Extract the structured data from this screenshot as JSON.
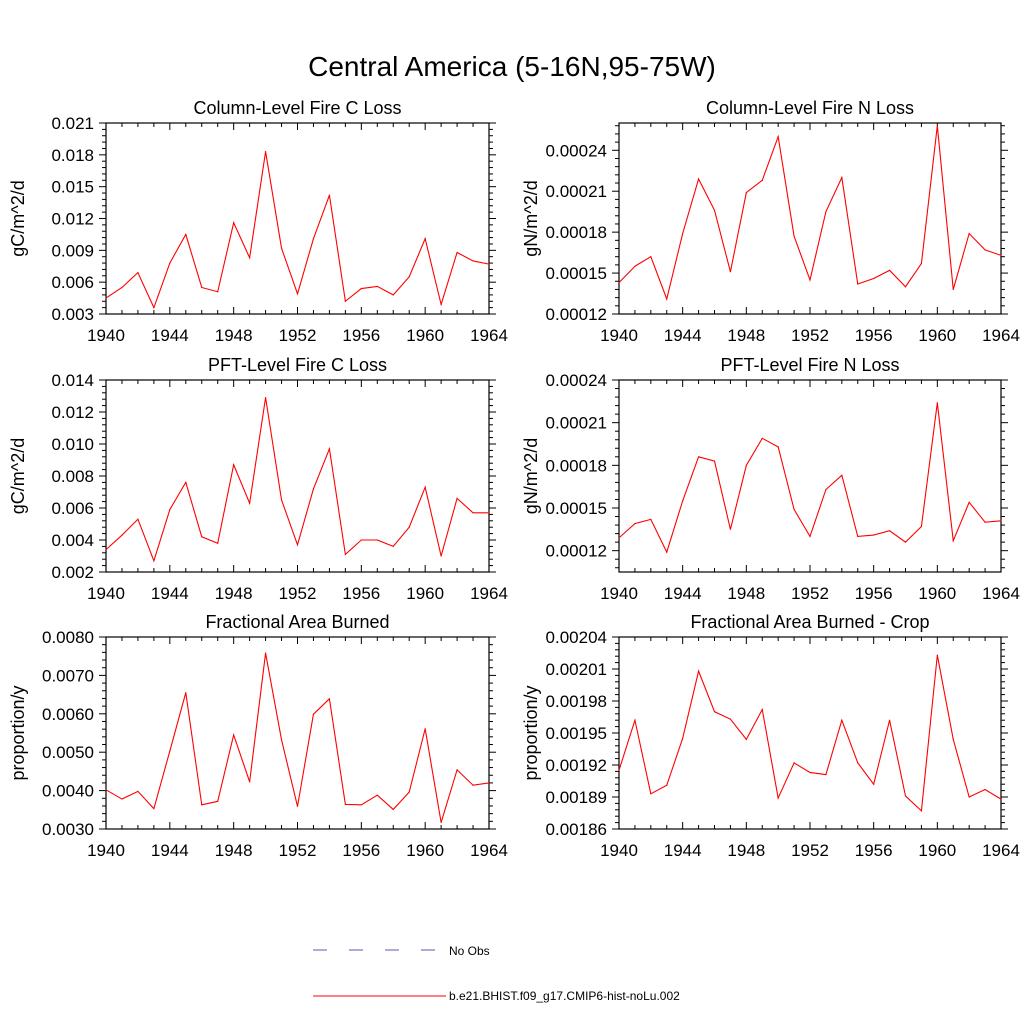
{
  "figure_title": "Central America (5-16N,95-75W)",
  "colors": {
    "model_line": "#ff0000",
    "obs_line": "#5a5ab4",
    "axis": "#000000"
  },
  "legend": {
    "obs_label": "No Obs",
    "model_label": "b.e21.BHIST.f09_g17.CMIP6-hist-noLu.002"
  },
  "chart_data": [
    {
      "type": "line",
      "title": "Column-Level Fire C Loss",
      "ylabel": "gC/m^2/d",
      "xlim": [
        1940,
        1964
      ],
      "ylim": [
        0.003,
        0.021
      ],
      "xticks": [
        "1940",
        "1944",
        "1948",
        "1952",
        "1956",
        "1960",
        "1964"
      ],
      "yticks": [
        "0.003",
        "0.006",
        "0.009",
        "0.012",
        "0.015",
        "0.018",
        "0.021"
      ],
      "x": [
        1940,
        1941,
        1942,
        1943,
        1944,
        1945,
        1946,
        1947,
        1948,
        1949,
        1950,
        1951,
        1952,
        1953,
        1954,
        1955,
        1956,
        1957,
        1958,
        1959,
        1960,
        1961,
        1962,
        1963,
        1964
      ],
      "series": [
        {
          "name": "b.e21.BHIST.f09_g17.CMIP6-hist-noLu.002",
          "values": [
            0.0045,
            0.0055,
            0.0069,
            0.0036,
            0.0078,
            0.0105,
            0.0055,
            0.0051,
            0.0116,
            0.0083,
            0.0183,
            0.0092,
            0.0049,
            0.0101,
            0.0142,
            0.0042,
            0.0054,
            0.0056,
            0.0048,
            0.0065,
            0.0101,
            0.0039,
            0.0088,
            0.008,
            0.0077
          ]
        }
      ]
    },
    {
      "type": "line",
      "title": "Column-Level Fire N Loss",
      "ylabel": "gN/m^2/d",
      "xlim": [
        1940,
        1964
      ],
      "ylim": [
        0.00012,
        0.00026
      ],
      "xticks": [
        "1940",
        "1944",
        "1948",
        "1952",
        "1956",
        "1960",
        "1964"
      ],
      "yticks": [
        "0.00012",
        "0.00015",
        "0.00018",
        "0.00021",
        "0.00024"
      ],
      "x": [
        1940,
        1941,
        1942,
        1943,
        1944,
        1945,
        1946,
        1947,
        1948,
        1949,
        1950,
        1951,
        1952,
        1953,
        1954,
        1955,
        1956,
        1957,
        1958,
        1959,
        1960,
        1961,
        1962,
        1963,
        1964
      ],
      "series": [
        {
          "name": "b.e21.BHIST.f09_g17.CMIP6-hist-noLu.002",
          "values": [
            0.000143,
            0.000155,
            0.000162,
            0.000131,
            0.000179,
            0.000219,
            0.000196,
            0.000151,
            0.000209,
            0.000218,
            0.00025,
            0.000177,
            0.000145,
            0.000195,
            0.00022,
            0.000142,
            0.000146,
            0.000152,
            0.00014,
            0.000157,
            0.000258,
            0.000138,
            0.000179,
            0.000167,
            0.000163
          ]
        }
      ]
    },
    {
      "type": "line",
      "title": "PFT-Level Fire C Loss",
      "ylabel": "gC/m^2/d",
      "xlim": [
        1940,
        1964
      ],
      "ylim": [
        0.002,
        0.014
      ],
      "xticks": [
        "1940",
        "1944",
        "1948",
        "1952",
        "1956",
        "1960",
        "1964"
      ],
      "yticks": [
        "0.002",
        "0.004",
        "0.006",
        "0.008",
        "0.010",
        "0.012",
        "0.014"
      ],
      "x": [
        1940,
        1941,
        1942,
        1943,
        1944,
        1945,
        1946,
        1947,
        1948,
        1949,
        1950,
        1951,
        1952,
        1953,
        1954,
        1955,
        1956,
        1957,
        1958,
        1959,
        1960,
        1961,
        1962,
        1963,
        1964
      ],
      "series": [
        {
          "name": "b.e21.BHIST.f09_g17.CMIP6-hist-noLu.002",
          "values": [
            0.0034,
            0.0043,
            0.0053,
            0.0027,
            0.0059,
            0.0076,
            0.0042,
            0.0038,
            0.0087,
            0.0063,
            0.0129,
            0.0065,
            0.0037,
            0.0072,
            0.0097,
            0.0031,
            0.004,
            0.004,
            0.0036,
            0.0048,
            0.0073,
            0.003,
            0.0066,
            0.0057,
            0.0057
          ]
        }
      ]
    },
    {
      "type": "line",
      "title": "PFT-Level Fire N Loss",
      "ylabel": "gN/m^2/d",
      "xlim": [
        1940,
        1964
      ],
      "ylim": [
        0.000105,
        0.00024
      ],
      "xticks": [
        "1940",
        "1944",
        "1948",
        "1952",
        "1956",
        "1960",
        "1964"
      ],
      "yticks": [
        "0.00012",
        "0.00015",
        "0.00018",
        "0.00021",
        "0.00024"
      ],
      "x": [
        1940,
        1941,
        1942,
        1943,
        1944,
        1945,
        1946,
        1947,
        1948,
        1949,
        1950,
        1951,
        1952,
        1953,
        1954,
        1955,
        1956,
        1957,
        1958,
        1959,
        1960,
        1961,
        1962,
        1963,
        1964
      ],
      "series": [
        {
          "name": "b.e21.BHIST.f09_g17.CMIP6-hist-noLu.002",
          "values": [
            0.000129,
            0.000139,
            0.000142,
            0.000119,
            0.000155,
            0.000186,
            0.000183,
            0.000135,
            0.00018,
            0.000199,
            0.000193,
            0.000149,
            0.00013,
            0.000163,
            0.000173,
            0.00013,
            0.000131,
            0.000134,
            0.000126,
            0.000137,
            0.000224,
            0.000127,
            0.000154,
            0.00014,
            0.000141
          ]
        }
      ]
    },
    {
      "type": "line",
      "title": "Fractional Area Burned",
      "ylabel": "proportion/y",
      "xlim": [
        1940,
        1964
      ],
      "ylim": [
        0.003,
        0.008
      ],
      "xticks": [
        "1940",
        "1944",
        "1948",
        "1952",
        "1956",
        "1960",
        "1964"
      ],
      "yticks": [
        "0.0030",
        "0.0040",
        "0.0050",
        "0.0060",
        "0.0070",
        "0.0080"
      ],
      "x": [
        1940,
        1941,
        1942,
        1943,
        1944,
        1945,
        1946,
        1947,
        1948,
        1949,
        1950,
        1951,
        1952,
        1953,
        1954,
        1955,
        1956,
        1957,
        1958,
        1959,
        1960,
        1961,
        1962,
        1963,
        1964
      ],
      "series": [
        {
          "name": "b.e21.BHIST.f09_g17.CMIP6-hist-noLu.002",
          "values": [
            0.00402,
            0.00378,
            0.00398,
            0.00353,
            0.00503,
            0.00655,
            0.00363,
            0.00372,
            0.00545,
            0.00423,
            0.00758,
            0.00532,
            0.00359,
            0.00599,
            0.00639,
            0.00364,
            0.00363,
            0.00388,
            0.00351,
            0.00396,
            0.00561,
            0.00317,
            0.00454,
            0.00414,
            0.0042
          ]
        }
      ]
    },
    {
      "type": "line",
      "title": "Fractional Area Burned - Crop",
      "ylabel": "proportion/y",
      "xlim": [
        1940,
        1964
      ],
      "ylim": [
        0.00186,
        0.00204
      ],
      "xticks": [
        "1940",
        "1944",
        "1948",
        "1952",
        "1956",
        "1960",
        "1964"
      ],
      "yticks": [
        "0.00186",
        "0.00189",
        "0.00192",
        "0.00195",
        "0.00198",
        "0.00201",
        "0.00204"
      ],
      "x": [
        1940,
        1941,
        1942,
        1943,
        1944,
        1945,
        1946,
        1947,
        1948,
        1949,
        1950,
        1951,
        1952,
        1953,
        1954,
        1955,
        1956,
        1957,
        1958,
        1959,
        1960,
        1961,
        1962,
        1963,
        1964
      ],
      "series": [
        {
          "name": "b.e21.BHIST.f09_g17.CMIP6-hist-noLu.002",
          "values": [
            0.001915,
            0.001962,
            0.001893,
            0.001901,
            0.001945,
            0.002008,
            0.00197,
            0.001963,
            0.001944,
            0.001972,
            0.001889,
            0.001922,
            0.001913,
            0.001911,
            0.001962,
            0.001922,
            0.001902,
            0.001962,
            0.001891,
            0.001877,
            0.002023,
            0.001944,
            0.00189,
            0.001897,
            0.001888
          ]
        }
      ]
    }
  ]
}
